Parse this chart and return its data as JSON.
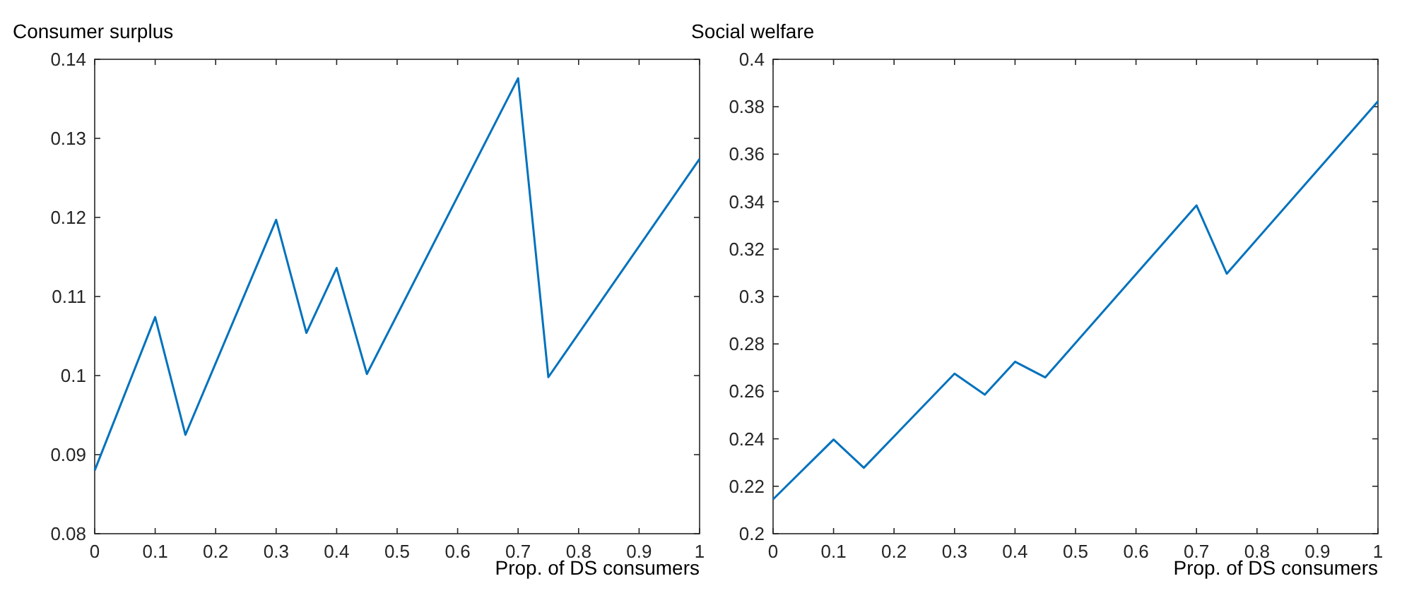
{
  "chart_data": [
    {
      "type": "line",
      "title": "Consumer surplus",
      "xlabel": "Prop. of DS consumers",
      "x": [
        0,
        0.1,
        0.15,
        0.3,
        0.35,
        0.4,
        0.45,
        0.7,
        0.75,
        1
      ],
      "series": [
        {
          "color": "#0072bd",
          "values": [
            0.088,
            0.1074,
            0.0925,
            0.1197,
            0.1054,
            0.1136,
            0.1002,
            0.1376,
            0.0998,
            0.1274
          ]
        }
      ],
      "xlim": [
        0,
        1
      ],
      "xticks": [
        0,
        0.1,
        0.2,
        0.3,
        0.4,
        0.5,
        0.6,
        0.7,
        0.8,
        0.9,
        1
      ],
      "ylim": [
        0.08,
        0.14
      ],
      "yticks": [
        0.08,
        0.09,
        0.1,
        0.11,
        0.12,
        0.13,
        0.14
      ],
      "grid": false
    },
    {
      "type": "line",
      "title": "Social welfare",
      "xlabel": "Prop. of DS consumers",
      "x": [
        0,
        0.1,
        0.15,
        0.3,
        0.35,
        0.4,
        0.45,
        0.7,
        0.75,
        1
      ],
      "series": [
        {
          "color": "#0072bd",
          "values": [
            0.2145,
            0.2397,
            0.2278,
            0.2675,
            0.2586,
            0.2725,
            0.2659,
            0.3384,
            0.3096,
            0.3823
          ]
        }
      ],
      "xlim": [
        0,
        1
      ],
      "xticks": [
        0,
        0.1,
        0.2,
        0.3,
        0.4,
        0.5,
        0.6,
        0.7,
        0.8,
        0.9,
        1
      ],
      "ylim": [
        0.2,
        0.4
      ],
      "yticks": [
        0.2,
        0.22,
        0.24,
        0.26,
        0.28,
        0.3,
        0.32,
        0.34,
        0.36,
        0.38,
        0.4
      ],
      "grid": false
    }
  ]
}
